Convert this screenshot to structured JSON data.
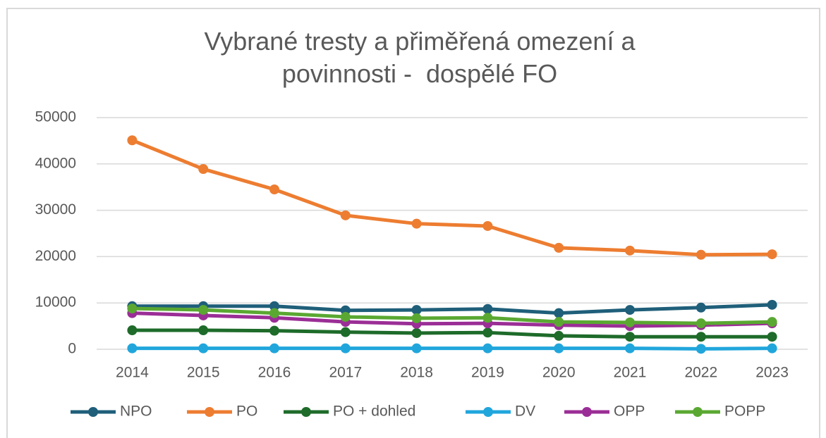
{
  "chart_data": {
    "type": "line",
    "title": "Vybrané tresty a přiměřená omezení a povinnosti -  dospělé FO",
    "categories": [
      "2014",
      "2015",
      "2016",
      "2017",
      "2018",
      "2019",
      "2020",
      "2021",
      "2022",
      "2023"
    ],
    "series": [
      {
        "name": "NPO",
        "color": "#1f5f7a",
        "values": [
          9300,
          9300,
          9300,
          8400,
          8500,
          8700,
          7800,
          8500,
          9000,
          9600
        ]
      },
      {
        "name": "PO",
        "color": "#ed7d31",
        "values": [
          45100,
          38900,
          34500,
          28900,
          27100,
          26600,
          21900,
          21300,
          20400,
          20500
        ]
      },
      {
        "name": "PO + dohled",
        "color": "#1e6b2a",
        "values": [
          4100,
          4100,
          4000,
          3700,
          3500,
          3600,
          2900,
          2700,
          2700,
          2700
        ]
      },
      {
        "name": "DV",
        "color": "#21a6dc",
        "values": [
          200,
          200,
          200,
          200,
          200,
          200,
          200,
          200,
          100,
          200
        ]
      },
      {
        "name": "OPP",
        "color": "#9b2e96",
        "values": [
          7800,
          7300,
          6800,
          5900,
          5500,
          5600,
          5200,
          5000,
          5200,
          5600
        ]
      },
      {
        "name": "POPP",
        "color": "#5aa832",
        "values": [
          8800,
          8500,
          7800,
          7000,
          6700,
          6800,
          5900,
          5800,
          5600,
          5900
        ]
      }
    ],
    "ylim": [
      0,
      50000
    ],
    "yticks": [
      0,
      10000,
      20000,
      30000,
      40000,
      50000
    ],
    "grid": true,
    "legend": "bottom"
  }
}
